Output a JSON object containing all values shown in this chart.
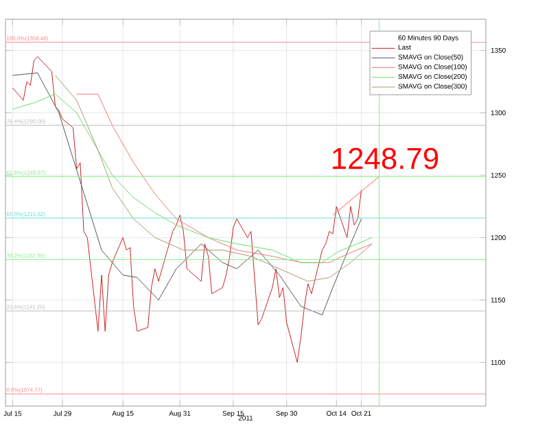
{
  "chart_data": {
    "type": "line",
    "legend_title": "60 Minutes 90 Days",
    "xlabel": "2011",
    "annotations": [
      "1248.79"
    ],
    "xlim": [
      "2011-07-13",
      "2011-11-25"
    ],
    "ylim": [
      1065,
      1375
    ],
    "xticks": [
      {
        "value": "2011-07-15",
        "label": "Jul 15"
      },
      {
        "value": "2011-07-29",
        "label": "Jul 29"
      },
      {
        "value": "2011-08-15",
        "label": "Aug 15"
      },
      {
        "value": "2011-08-31",
        "label": "Aug 31"
      },
      {
        "value": "2011-09-15",
        "label": "Sep 15"
      },
      {
        "value": "2011-09-30",
        "label": "Sep 30"
      },
      {
        "value": "2011-10-14",
        "label": "Oct 14"
      },
      {
        "value": "2011-10-21",
        "label": "Oct 21"
      }
    ],
    "yticks": [
      1100,
      1150,
      1200,
      1250,
      1300,
      1350
    ],
    "grid": true,
    "legend": "top right",
    "marker": "none",
    "series": [
      {
        "name": "Last",
        "color": "#cc2222",
        "x": [
          "2011-07-15",
          "2011-07-18",
          "2011-07-19",
          "2011-07-20",
          "2011-07-21",
          "2011-07-22",
          "2011-07-25",
          "2011-07-26",
          "2011-07-27",
          "2011-07-28",
          "2011-07-29",
          "2011-08-01",
          "2011-08-02",
          "2011-08-03",
          "2011-08-04",
          "2011-08-05",
          "2011-08-08",
          "2011-08-09",
          "2011-08-10",
          "2011-08-11",
          "2011-08-12",
          "2011-08-15",
          "2011-08-16",
          "2011-08-17",
          "2011-08-18",
          "2011-08-19",
          "2011-08-22",
          "2011-08-23",
          "2011-08-24",
          "2011-08-25",
          "2011-08-26",
          "2011-08-29",
          "2011-08-30",
          "2011-08-31",
          "2011-09-01",
          "2011-09-02",
          "2011-09-06",
          "2011-09-07",
          "2011-09-08",
          "2011-09-09",
          "2011-09-12",
          "2011-09-13",
          "2011-09-14",
          "2011-09-15",
          "2011-09-16",
          "2011-09-19",
          "2011-09-20",
          "2011-09-21",
          "2011-09-22",
          "2011-09-23",
          "2011-09-26",
          "2011-09-27",
          "2011-09-28",
          "2011-09-29",
          "2011-09-30",
          "2011-10-03",
          "2011-10-04",
          "2011-10-05",
          "2011-10-06",
          "2011-10-07",
          "2011-10-10",
          "2011-10-11",
          "2011-10-12",
          "2011-10-13",
          "2011-10-14",
          "2011-10-17",
          "2011-10-18",
          "2011-10-19",
          "2011-10-20",
          "2011-10-21"
        ],
        "values": [
          1320,
          1310,
          1325,
          1322,
          1342,
          1345,
          1336,
          1333,
          1305,
          1302,
          1295,
          1288,
          1255,
          1260,
          1205,
          1200,
          1125,
          1170,
          1125,
          1170,
          1180,
          1200,
          1190,
          1192,
          1145,
          1125,
          1128,
          1160,
          1175,
          1165,
          1175,
          1205,
          1210,
          1218,
          1205,
          1175,
          1165,
          1195,
          1185,
          1155,
          1160,
          1170,
          1185,
          1208,
          1215,
          1200,
          1205,
          1168,
          1130,
          1135,
          1160,
          1175,
          1152,
          1160,
          1132,
          1100,
          1120,
          1145,
          1163,
          1155,
          1190,
          1195,
          1205,
          1203,
          1225,
          1200,
          1225,
          1210,
          1215,
          1238
        ]
      },
      {
        "name": "SMAVG on Close(50)",
        "color": "#555555",
        "x": [
          "2011-07-15",
          "2011-07-22",
          "2011-07-28",
          "2011-08-03",
          "2011-08-09",
          "2011-08-15",
          "2011-08-19",
          "2011-08-25",
          "2011-08-30",
          "2011-09-06",
          "2011-09-12",
          "2011-09-16",
          "2011-09-22",
          "2011-09-28",
          "2011-10-04",
          "2011-10-10",
          "2011-10-13",
          "2011-10-18",
          "2011-10-21"
        ],
        "values": [
          1330,
          1332,
          1300,
          1245,
          1190,
          1170,
          1168,
          1150,
          1175,
          1195,
          1180,
          1175,
          1190,
          1170,
          1145,
          1138,
          1160,
          1195,
          1215
        ]
      },
      {
        "name": "SMAVG on Close(100)",
        "color": "#ee7777",
        "x": [
          "2011-08-02",
          "2011-08-08",
          "2011-08-12",
          "2011-08-18",
          "2011-08-24",
          "2011-08-30",
          "2011-09-08",
          "2011-09-16",
          "2011-09-26",
          "2011-10-04",
          "2011-10-12",
          "2011-10-18",
          "2011-10-24"
        ],
        "values": [
          1315,
          1315,
          1290,
          1260,
          1235,
          1215,
          1200,
          1190,
          1185,
          1180,
          1180,
          1188,
          1195
        ]
      },
      {
        "name": "SMAVG on Close(200)",
        "color": "#66dd66",
        "x": [
          "2011-07-15",
          "2011-07-21",
          "2011-07-27",
          "2011-08-02",
          "2011-08-08",
          "2011-08-12",
          "2011-08-18",
          "2011-08-24",
          "2011-08-30",
          "2011-09-08",
          "2011-09-16",
          "2011-09-26",
          "2011-10-04",
          "2011-10-10",
          "2011-10-14",
          "2011-10-24"
        ],
        "values": [
          1303,
          1308,
          1315,
          1300,
          1270,
          1250,
          1232,
          1220,
          1210,
          1200,
          1195,
          1190,
          1180,
          1180,
          1188,
          1200
        ]
      },
      {
        "name": "SMAVG on Close(300)",
        "color": "#a89a70",
        "x": [
          "2011-07-27",
          "2011-08-02",
          "2011-08-08",
          "2011-08-12",
          "2011-08-18",
          "2011-08-24",
          "2011-09-01",
          "2011-09-12",
          "2011-09-20",
          "2011-09-28",
          "2011-10-06",
          "2011-10-12",
          "2011-10-18",
          "2011-10-24"
        ],
        "values": [
          1330,
          1310,
          1270,
          1240,
          1215,
          1200,
          1190,
          1190,
          1185,
          1175,
          1165,
          1168,
          1180,
          1195
        ]
      },
      {
        "color": "#ff5555",
        "x": [
          "2011-10-13",
          "2011-10-26"
        ],
        "values": [
          1218,
          1249
        ]
      }
    ],
    "ref_lines": [
      {
        "axis": "y",
        "value": 1356.48,
        "label": "100.0%(1356.48)",
        "color": "#ff8888",
        "line_style": "solid"
      },
      {
        "axis": "y",
        "value": 1290.0,
        "label": "76.4%(1290.00)",
        "color": "#bbbbbb",
        "line_style": "solid"
      },
      {
        "axis": "y",
        "value": 1248.87,
        "label": "61.8%(1248.87)",
        "color": "#88ee88",
        "line_style": "solid"
      },
      {
        "axis": "y",
        "value": 1215.62,
        "label": "50.0%(1215.62)",
        "color": "#66dddd",
        "line_style": "solid"
      },
      {
        "axis": "y",
        "value": 1182.38,
        "label": "38.2%(1182.38)",
        "color": "#88ee88",
        "line_style": "solid"
      },
      {
        "axis": "y",
        "value": 1141.25,
        "label": "23.6%(1141.25)",
        "color": "#bbbbbb",
        "line_style": "solid"
      },
      {
        "axis": "y",
        "value": 1074.77,
        "label": "0.0%(1074.77)",
        "color": "#ff8888",
        "line_style": "solid"
      },
      {
        "axis": "x",
        "value": "2011-10-26",
        "color": "#88ee88",
        "line_style": "solid"
      }
    ]
  }
}
